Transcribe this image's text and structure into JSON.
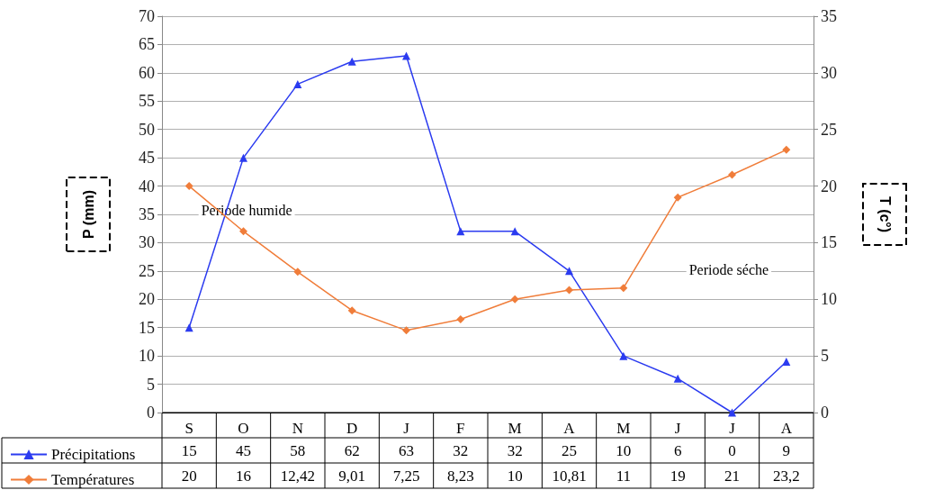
{
  "chart_data": {
    "type": "line",
    "categories": [
      "S",
      "O",
      "N",
      "D",
      "J",
      "F",
      "M",
      "A",
      "M",
      "J",
      "J",
      "A"
    ],
    "ylabel": "P (mm)",
    "y2label": "T (c°)",
    "ylim": [
      0,
      70
    ],
    "yticks": [
      0,
      5,
      10,
      15,
      20,
      25,
      30,
      35,
      40,
      45,
      50,
      55,
      60,
      65,
      70
    ],
    "y2lim": [
      0,
      35
    ],
    "y2ticks": [
      0,
      5,
      10,
      15,
      20,
      25,
      30,
      35
    ],
    "grid": "y",
    "legend": "bottom left",
    "series": [
      {
        "name": "Précipitations",
        "color": "#2b3bf0",
        "marker": "triangle",
        "values": [
          15,
          45,
          58,
          62,
          63,
          32,
          32,
          25,
          10,
          6,
          0,
          9
        ],
        "value_labels": [
          "15",
          "45",
          "58",
          "62",
          "63",
          "32",
          "32",
          "25",
          "10",
          "6",
          "0",
          "9"
        ]
      },
      {
        "name": "Températures",
        "color": "#f07d3a",
        "marker": "diamond",
        "axis": "y2",
        "values": [
          20,
          16,
          12.42,
          9.01,
          7.25,
          8.23,
          10,
          10.81,
          11,
          19,
          21,
          23.2
        ],
        "value_labels": [
          "20",
          "16",
          "12,42",
          "9,01",
          "7,25",
          "8,23",
          "10",
          "10,81",
          "11",
          "19",
          "21",
          "23,2"
        ]
      }
    ],
    "annotations": [
      "Periode humide",
      "Periode séche"
    ]
  }
}
